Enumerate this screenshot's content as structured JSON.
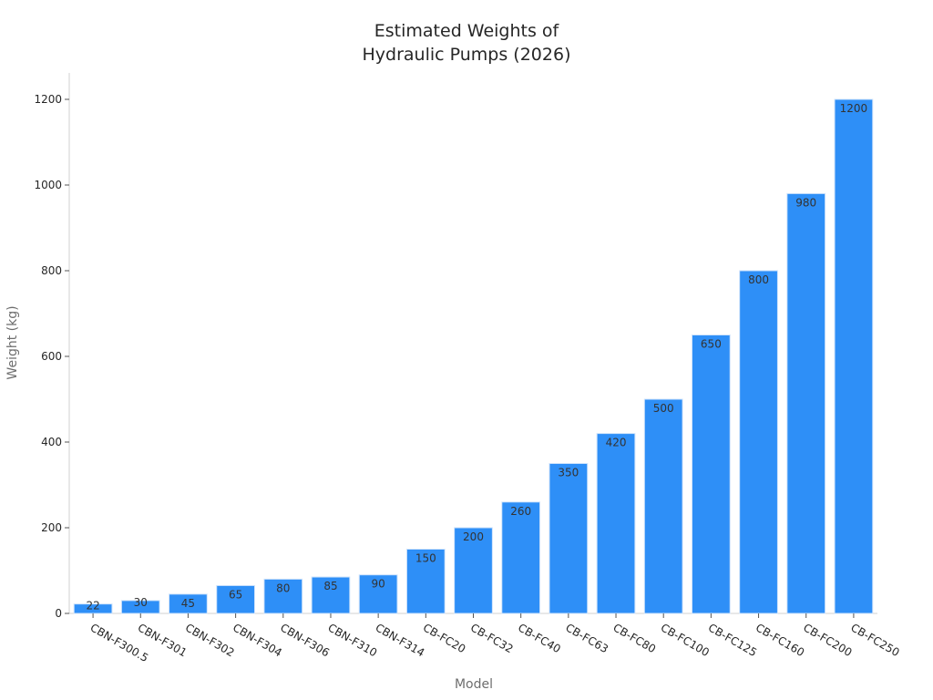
{
  "chart_data": {
    "type": "bar",
    "title": "Estimated Weights of\nHydraulic Pumps (2026)",
    "title_lines": [
      "Estimated Weights of",
      "Hydraulic Pumps (2026)"
    ],
    "xlabel": "Model",
    "ylabel": "Weight (kg)",
    "ylim": [
      0,
      1260
    ],
    "yticks": [
      0,
      200,
      400,
      600,
      800,
      1000,
      1200
    ],
    "grid": false,
    "legend": null,
    "bar_color": "#2e8ff7",
    "categories": [
      "CBN-F300.5",
      "CBN-F301",
      "CBN-F302",
      "CBN-F304",
      "CBN-F306",
      "CBN-F310",
      "CBN-F314",
      "CB-FC20",
      "CB-FC32",
      "CB-FC40",
      "CB-FC63",
      "CB-FC80",
      "CB-FC100",
      "CB-FC125",
      "CB-FC160",
      "CB-FC200",
      "CB-FC250"
    ],
    "values": [
      22,
      30,
      45,
      65,
      80,
      85,
      90,
      150,
      200,
      260,
      350,
      420,
      500,
      650,
      800,
      980,
      1200
    ]
  }
}
